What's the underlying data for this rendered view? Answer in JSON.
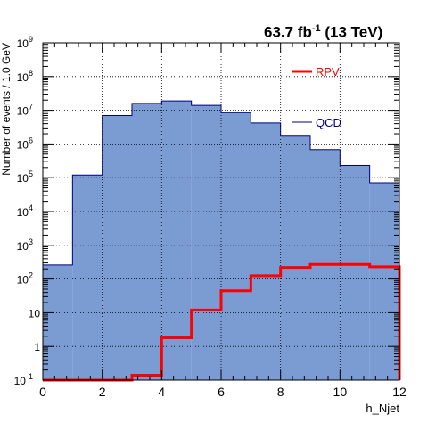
{
  "header": {
    "lumi_value": "63.7 fb",
    "lumi_exp": "-1",
    "energy": "(13 TeV)"
  },
  "chart_data": {
    "type": "histogram",
    "xlabel": "h_Njet",
    "ylabel": "Number of events / 1.0 GeV",
    "x_range": [
      0,
      12
    ],
    "y_range": [
      0.1,
      1000000000
    ],
    "y_scale": "log",
    "grid": true,
    "bin_edges": [
      0,
      1,
      2,
      3,
      4,
      5,
      6,
      7,
      8,
      9,
      10,
      11,
      12
    ],
    "x_ticks": [
      0,
      2,
      4,
      6,
      8,
      10,
      12
    ],
    "y_ticks": [
      {
        "value": 0.1,
        "base": "10",
        "exp": "-1"
      },
      {
        "value": 1,
        "base": "1",
        "exp": ""
      },
      {
        "value": 10,
        "base": "10",
        "exp": ""
      },
      {
        "value": 100,
        "base": "10",
        "exp": "2"
      },
      {
        "value": 1000,
        "base": "10",
        "exp": "3"
      },
      {
        "value": 10000,
        "base": "10",
        "exp": "4"
      },
      {
        "value": 100000,
        "base": "10",
        "exp": "5"
      },
      {
        "value": 1000000,
        "base": "10",
        "exp": "6"
      },
      {
        "value": 10000000,
        "base": "10",
        "exp": "7"
      },
      {
        "value": 100000000,
        "base": "10",
        "exp": "8"
      },
      {
        "value": 1000000000,
        "base": "10",
        "exp": "9"
      }
    ],
    "series": [
      {
        "name": "QCD",
        "style": "filled",
        "fill": "#7b9bd3",
        "line": "#00007f",
        "values": [
          260,
          120000,
          7000000,
          16000000,
          19000000,
          14000000,
          8500000,
          4200000,
          1800000,
          680000,
          230000,
          70000
        ]
      },
      {
        "name": "RPV",
        "style": "line",
        "line": "#ff0000",
        "values": [
          0.1,
          0.1,
          0.1,
          0.14,
          1.8,
          12,
          45,
          125,
          220,
          270,
          270,
          230
        ]
      }
    ],
    "legend_position": "top-right"
  }
}
